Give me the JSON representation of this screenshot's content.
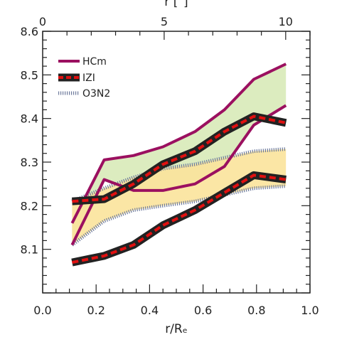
{
  "chart_data": {
    "type": "line",
    "xlabel": "r/Rₑ",
    "top_xlabel": "r [′′]",
    "ylabel": "",
    "xlim": [
      0.0,
      1.0
    ],
    "ylim": [
      8.0,
      8.6
    ],
    "top_xlim": [
      0,
      11
    ],
    "xticks": [
      "0.0",
      "0.2",
      "0.4",
      "0.6",
      "0.8",
      "1.0"
    ],
    "yticks": [
      "8.1",
      "8.2",
      "8.3",
      "8.4",
      "8.5",
      "8.6"
    ],
    "top_xticks": [
      "0",
      "5",
      "10"
    ],
    "legend_position": "top-left",
    "x": [
      0.11,
      0.23,
      0.34,
      0.45,
      0.57,
      0.68,
      0.79,
      0.91
    ],
    "series": [
      {
        "name": "HCm",
        "color": "#9b1060",
        "fill": "#dcecbf",
        "upper": [
          8.16,
          8.305,
          8.315,
          8.335,
          8.37,
          8.42,
          8.49,
          8.525
        ],
        "lower": [
          8.11,
          8.26,
          8.235,
          8.235,
          8.25,
          8.29,
          8.385,
          8.43
        ]
      },
      {
        "name": "IZI",
        "color": "#e01010",
        "outline": "#222222",
        "upper": [
          8.21,
          8.215,
          8.25,
          8.295,
          8.325,
          8.37,
          8.405,
          8.39
        ],
        "lower": [
          8.07,
          8.085,
          8.11,
          8.155,
          8.19,
          8.23,
          8.27,
          8.26
        ]
      },
      {
        "name": "O3N2",
        "color": "#6d7a9c",
        "fill": "#fbe39b",
        "upper": [
          8.21,
          8.24,
          8.265,
          8.285,
          8.295,
          8.31,
          8.325,
          8.33
        ],
        "lower": [
          8.11,
          8.165,
          8.19,
          8.2,
          8.21,
          8.225,
          8.24,
          8.245
        ]
      }
    ]
  }
}
